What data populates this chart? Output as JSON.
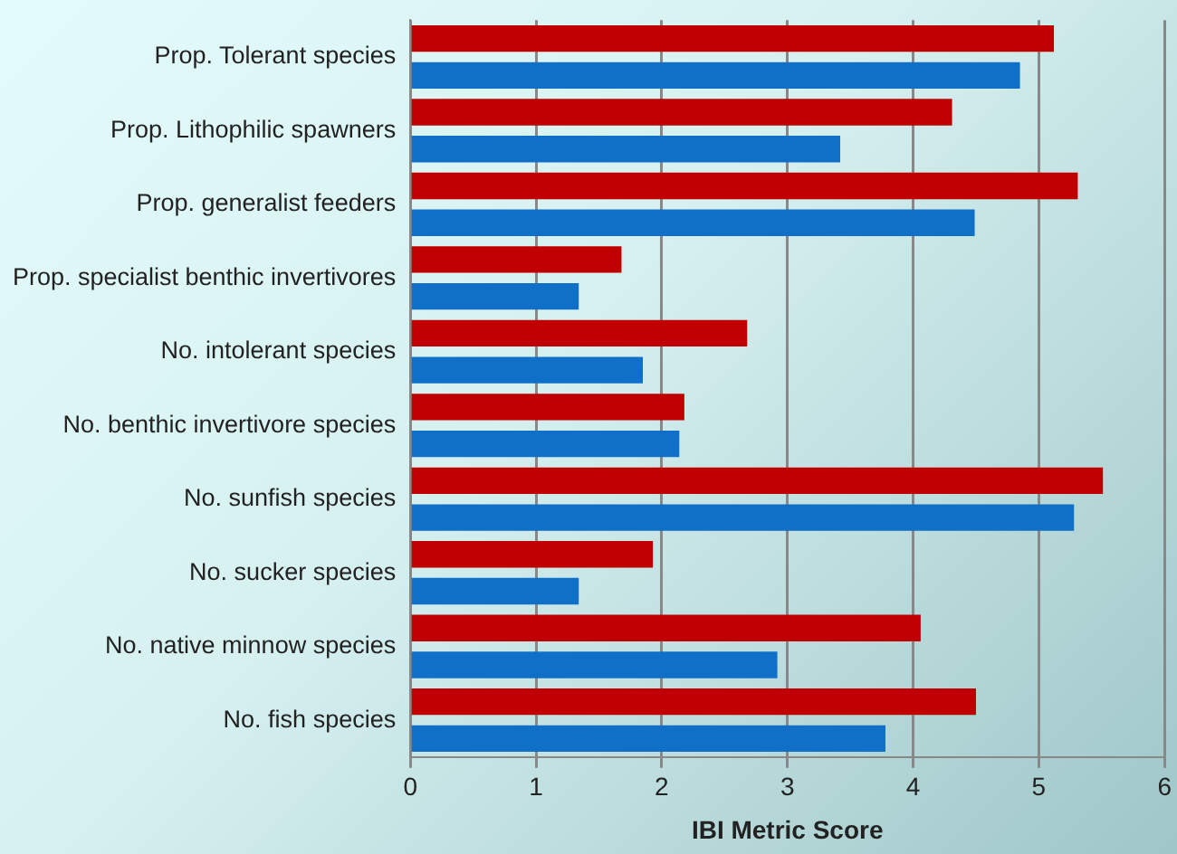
{
  "chart_data": {
    "type": "bar",
    "orientation": "horizontal",
    "xlabel": "IBI Metric Score",
    "categories": [
      "Prop. Tolerant species",
      "Prop. Lithophilic spawners",
      "Prop. generalist feeders",
      "Prop. specialist benthic invertivores",
      "No. intolerant species",
      "No. benthic invertivore species",
      "No. sunfish species",
      "No. sucker species",
      "No. native minnow species",
      "No. fish species"
    ],
    "series": [
      {
        "color": "#c00000",
        "values": [
          5.12,
          4.31,
          5.31,
          1.68,
          2.68,
          2.18,
          5.51,
          1.93,
          4.06,
          4.5
        ]
      },
      {
        "color": "#1070c8",
        "values": [
          4.85,
          3.42,
          4.49,
          1.34,
          1.85,
          2.14,
          5.28,
          1.34,
          2.92,
          3.78
        ]
      }
    ],
    "xlim": [
      0,
      6
    ],
    "xticks": [
      0,
      1,
      2,
      3,
      4,
      5,
      6
    ],
    "grid": "x",
    "legend": false
  }
}
